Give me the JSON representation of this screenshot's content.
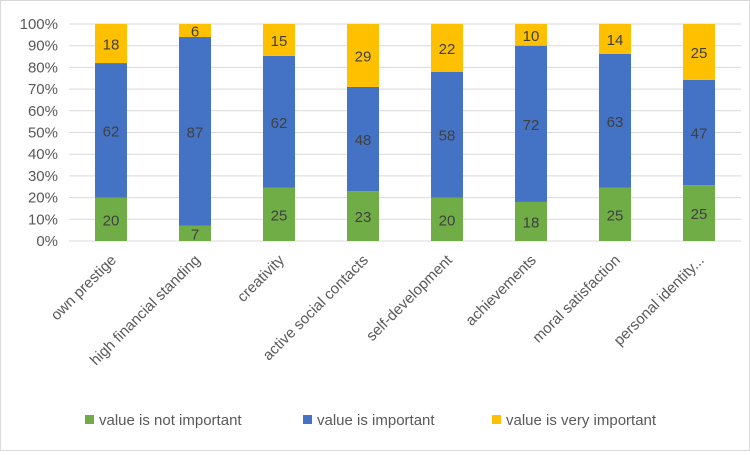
{
  "chart_data": {
    "type": "bar",
    "stacked": "percent",
    "categories": [
      "own prestige",
      "high financial standing",
      "creativity",
      "active social contacts",
      "self-development",
      "achievements",
      "moral satisfaction",
      "personal identity..."
    ],
    "series": [
      {
        "name": "value is not important",
        "color": "#70ad47",
        "values": [
          20,
          7,
          25,
          23,
          20,
          18,
          25,
          25
        ]
      },
      {
        "name": "value is important",
        "color": "#4472c4",
        "values": [
          62,
          87,
          62,
          48,
          58,
          72,
          63,
          47
        ]
      },
      {
        "name": "value is very important",
        "color": "#ffc000",
        "values": [
          18,
          6,
          15,
          29,
          22,
          10,
          14,
          25
        ]
      }
    ],
    "y_ticks": [
      "0%",
      "10%",
      "20%",
      "30%",
      "40%",
      "50%",
      "60%",
      "70%",
      "80%",
      "90%",
      "100%"
    ],
    "ylim": [
      0,
      100
    ],
    "grid": true,
    "legend_position": "bottom"
  }
}
